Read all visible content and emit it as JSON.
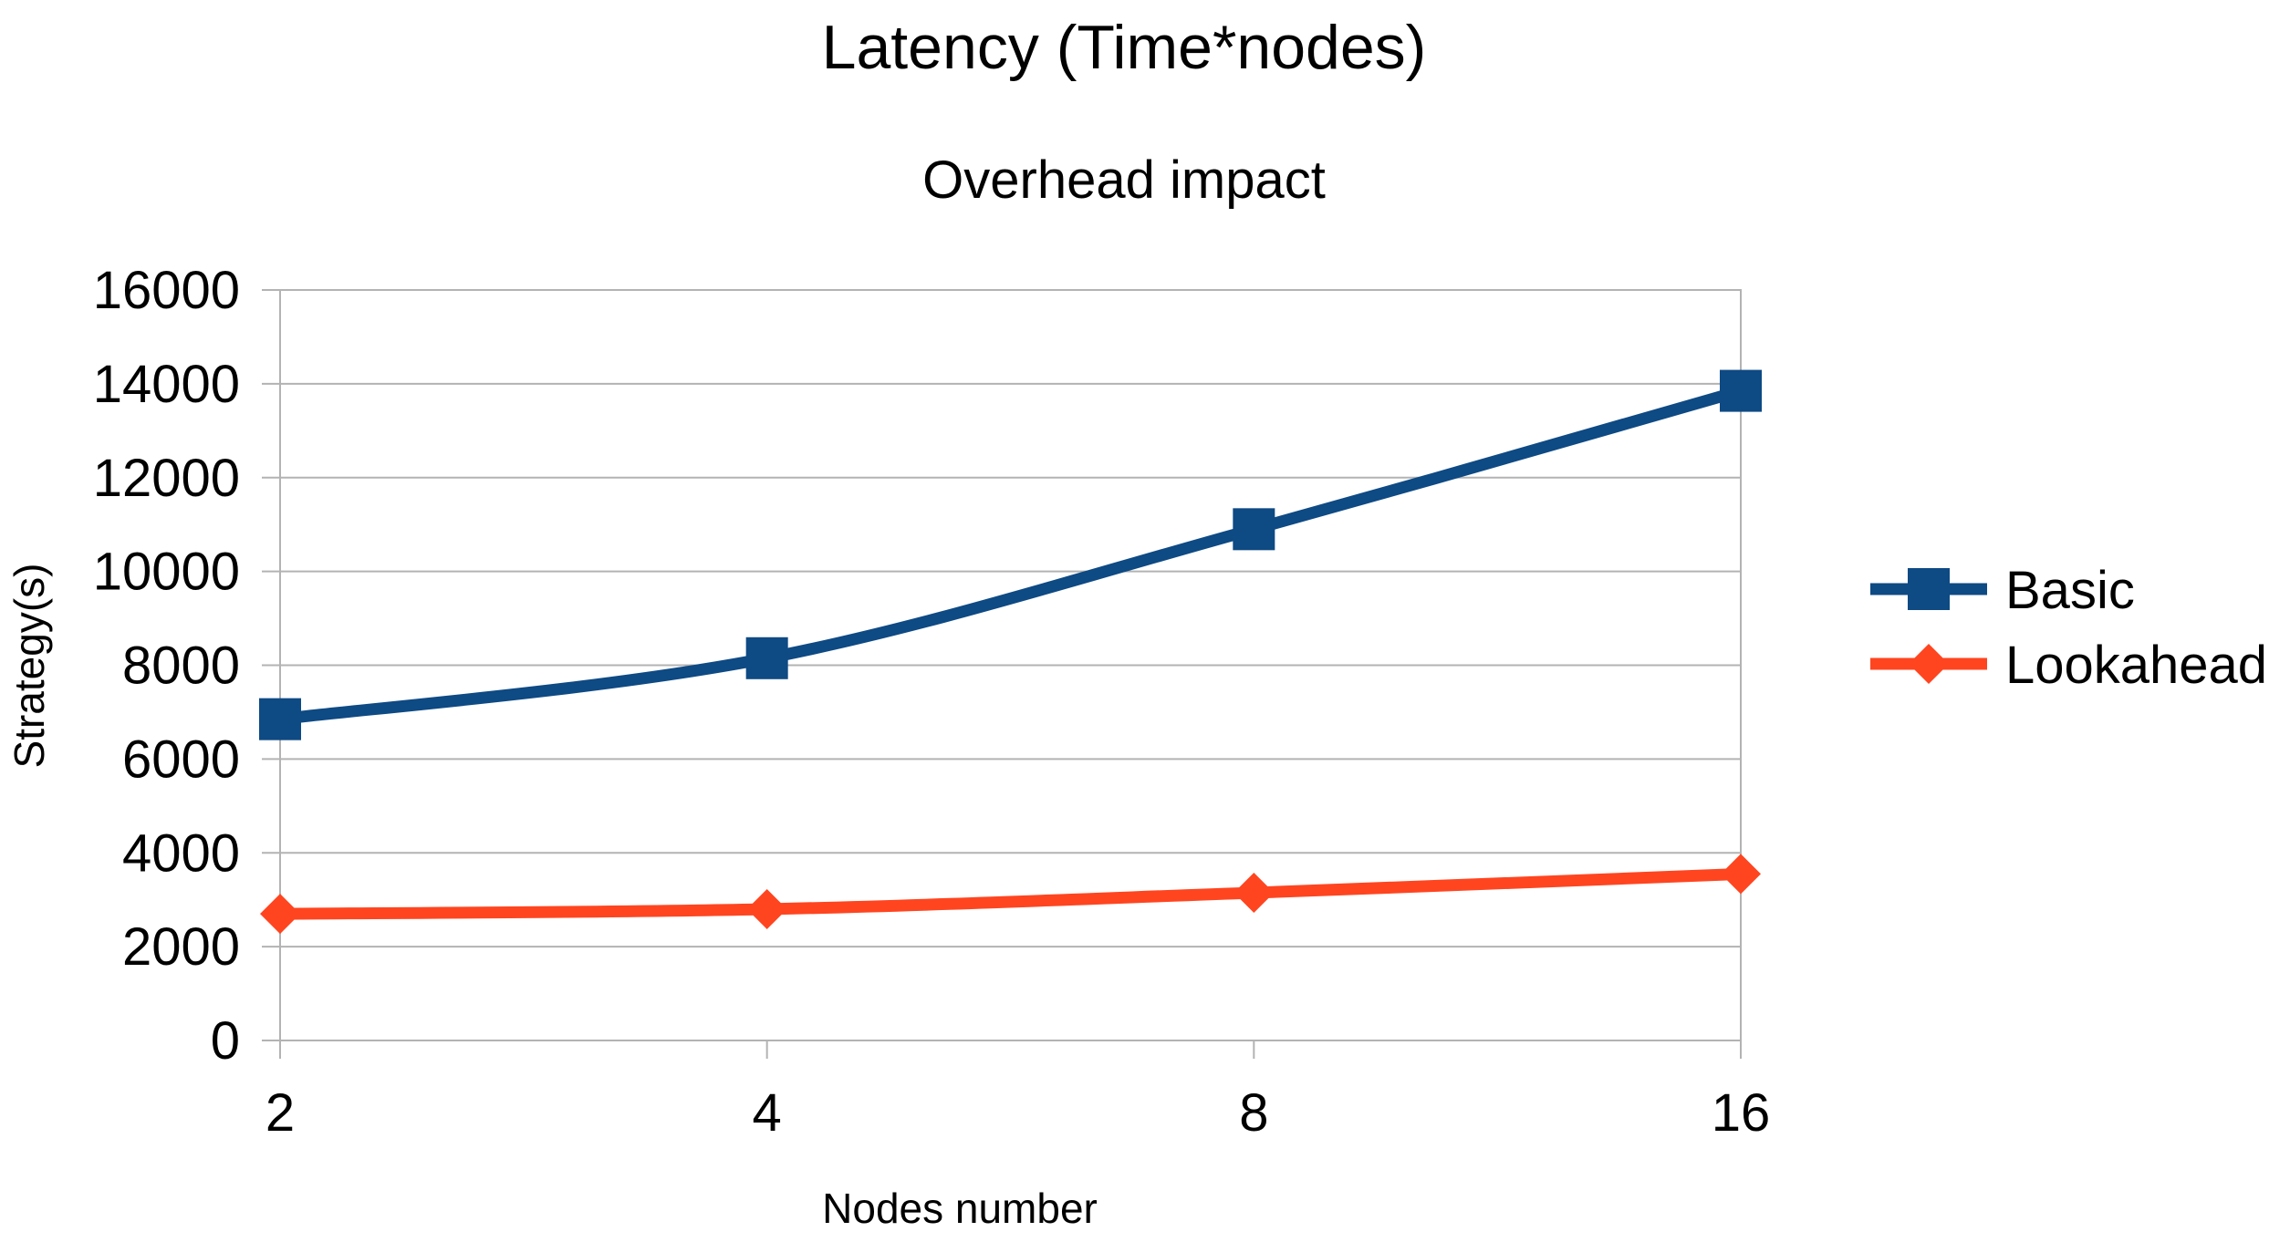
{
  "chart_data": {
    "type": "line",
    "title": "Latency (Time*nodes)",
    "subtitle": "Overhead impact",
    "xlabel": "Nodes number",
    "ylabel": "Strategy(s)",
    "categories": [
      "2",
      "4",
      "8",
      "16"
    ],
    "ylim": [
      0,
      16000
    ],
    "yticks": [
      "0",
      "2000",
      "4000",
      "6000",
      "8000",
      "10000",
      "12000",
      "14000",
      "16000"
    ],
    "grid": true,
    "legend_position": "right",
    "series": [
      {
        "name": "Basic",
        "values": [
          6850,
          8150,
          10900,
          13850
        ],
        "color": "#0e4a84",
        "marker": "square"
      },
      {
        "name": "Lookahead",
        "values": [
          2700,
          2800,
          3150,
          3550
        ],
        "color": "#ff4520",
        "marker": "diamond"
      }
    ]
  }
}
